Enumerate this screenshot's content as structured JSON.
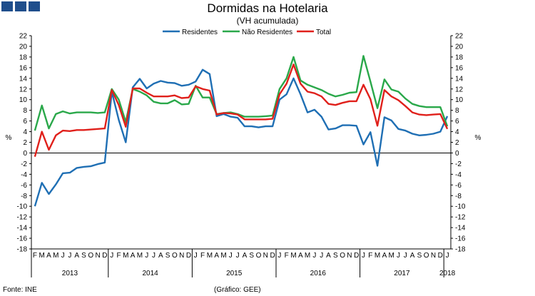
{
  "header": {
    "title": "Dormidas na Hotelaria",
    "subtitle": "(VH acumulada)"
  },
  "footer": {
    "source": "Fonte: INE",
    "credit": "(Gráfico: GEE)"
  },
  "colors": {
    "residentes": "#1f6fb4",
    "nao_residentes": "#2aa84a",
    "total": "#e0201b",
    "logo": "#1f4e8c",
    "axis": "#000000"
  },
  "chart_data": {
    "type": "line",
    "title": "Dormidas na Hotelaria",
    "subtitle": "(VH acumulada)",
    "ylabel_left": "%",
    "ylabel_right": "%",
    "ylim": [
      -18,
      22
    ],
    "yticks": [
      "-18",
      "-16",
      "-14",
      "-12",
      "-10",
      "-8",
      "-6",
      "-4",
      "-2",
      "0",
      "2",
      "4",
      "6",
      "8",
      "10",
      "12",
      "14",
      "16",
      "18",
      "20",
      "22"
    ],
    "legend_position": "top-center",
    "month_labels": [
      "F",
      "M",
      "A",
      "M",
      "J",
      "J",
      "A",
      "S",
      "O",
      "N",
      "D",
      "J",
      "F",
      "M",
      "A",
      "M",
      "J",
      "J",
      "A",
      "S",
      "O",
      "N",
      "D",
      "J",
      "F",
      "M",
      "A",
      "M",
      "J",
      "J",
      "A",
      "S",
      "O",
      "N",
      "D",
      "J",
      "F",
      "M",
      "A",
      "M",
      "J",
      "J",
      "A",
      "S",
      "O",
      "N",
      "D",
      "J",
      "F",
      "M",
      "A",
      "M",
      "J",
      "J",
      "A",
      "S",
      "O",
      "N",
      "D",
      "J"
    ],
    "year_labels": [
      "2013",
      "2014",
      "2015",
      "2016",
      "2017",
      "2018"
    ],
    "series": [
      {
        "name": "Residentes",
        "values": [
          -10,
          -5.6,
          -7.7,
          -5.9,
          -3.8,
          -3.7,
          -2.8,
          -2.6,
          -2.5,
          -2.1,
          -1.8,
          11.5,
          6.2,
          2.0,
          12.3,
          13.9,
          12.1,
          13.0,
          13.5,
          13.2,
          13.1,
          12.6,
          12.8,
          13.4,
          15.6,
          14.8,
          6.9,
          7.3,
          6.8,
          6.6,
          5.0,
          5.0,
          4.8,
          5.0,
          5.0,
          10.0,
          11.0,
          14.0,
          11.0,
          7.6,
          8.1,
          6.8,
          4.4,
          4.6,
          5.2,
          5.2,
          5.1,
          1.6,
          3.9,
          -2.4,
          6.7,
          6.1,
          4.5,
          4.2,
          3.6,
          3.3,
          3.4,
          3.6,
          4.0,
          6.9
        ]
      },
      {
        "name": "Não Residentes",
        "values": [
          4.2,
          8.9,
          4.6,
          7.3,
          7.8,
          7.4,
          7.6,
          7.6,
          7.6,
          7.5,
          7.6,
          12.0,
          10.0,
          5.8,
          12.0,
          11.5,
          10.8,
          9.6,
          9.3,
          9.3,
          9.9,
          9.1,
          9.2,
          12.6,
          10.4,
          10.4,
          7.3,
          7.5,
          7.6,
          7.3,
          6.8,
          6.8,
          6.8,
          6.9,
          7.0,
          12.0,
          14.0,
          18.0,
          13.6,
          12.8,
          12.3,
          11.8,
          11.1,
          10.6,
          10.9,
          11.3,
          11.4,
          18.2,
          13.4,
          8.4,
          13.8,
          11.9,
          11.5,
          10.2,
          9.2,
          8.8,
          8.6,
          8.6,
          8.6,
          5.0
        ]
      },
      {
        "name": "Total",
        "values": [
          -0.7,
          4.0,
          0.6,
          3.3,
          4.2,
          4.1,
          4.3,
          4.3,
          4.4,
          4.5,
          4.6,
          11.8,
          9.0,
          4.9,
          12.1,
          12.1,
          11.3,
          10.6,
          10.6,
          10.6,
          10.8,
          10.3,
          10.4,
          12.5,
          12.0,
          11.7,
          7.2,
          7.5,
          7.4,
          7.2,
          6.3,
          6.3,
          6.3,
          6.3,
          6.4,
          11.0,
          13.0,
          16.6,
          13.0,
          11.5,
          11.2,
          10.6,
          9.2,
          9.0,
          9.4,
          9.7,
          9.7,
          12.8,
          10.1,
          5.1,
          11.8,
          10.6,
          9.9,
          8.8,
          7.6,
          7.2,
          7.1,
          7.2,
          7.3,
          4.5
        ]
      }
    ]
  }
}
